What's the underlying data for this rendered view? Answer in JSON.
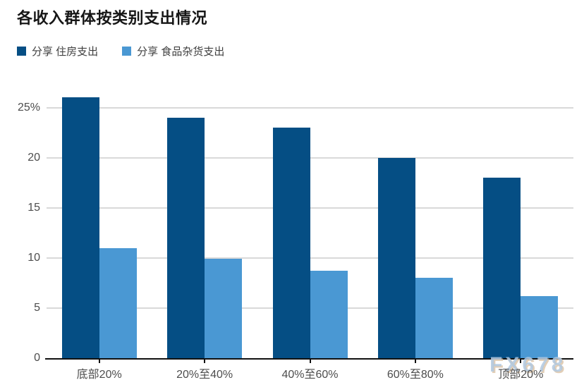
{
  "title": "各收入群体按类别支出情况",
  "watermark": "FX678",
  "colors": {
    "housing": "#054e84",
    "groceries": "#4a98d3",
    "gridline": "#d9d9d9",
    "axis": "#111111",
    "label_text": "#4d4d4d",
    "title_text": "#161616"
  },
  "chart_data": {
    "type": "bar",
    "title": "各收入群体按类别支出情况",
    "categories": [
      "底部20%",
      "20%至40%",
      "40%至60%",
      "60%至80%",
      "顶部20%"
    ],
    "series": [
      {
        "name": "分享 住房支出",
        "color": "#054e84",
        "values": [
          26,
          24,
          23,
          20,
          18
        ]
      },
      {
        "name": "分享 食品杂货支出",
        "color": "#4a98d3",
        "values": [
          11,
          9.9,
          8.7,
          8,
          6.2
        ]
      }
    ],
    "xlabel": "",
    "ylabel": "",
    "ylim": [
      0,
      26.6
    ],
    "yticks": [
      0,
      5,
      10,
      15,
      20,
      25
    ],
    "ytick_labels": [
      "0",
      "5",
      "10",
      "15",
      "20",
      "25%"
    ],
    "grid": "horizontal",
    "legend_position": "top-left"
  }
}
